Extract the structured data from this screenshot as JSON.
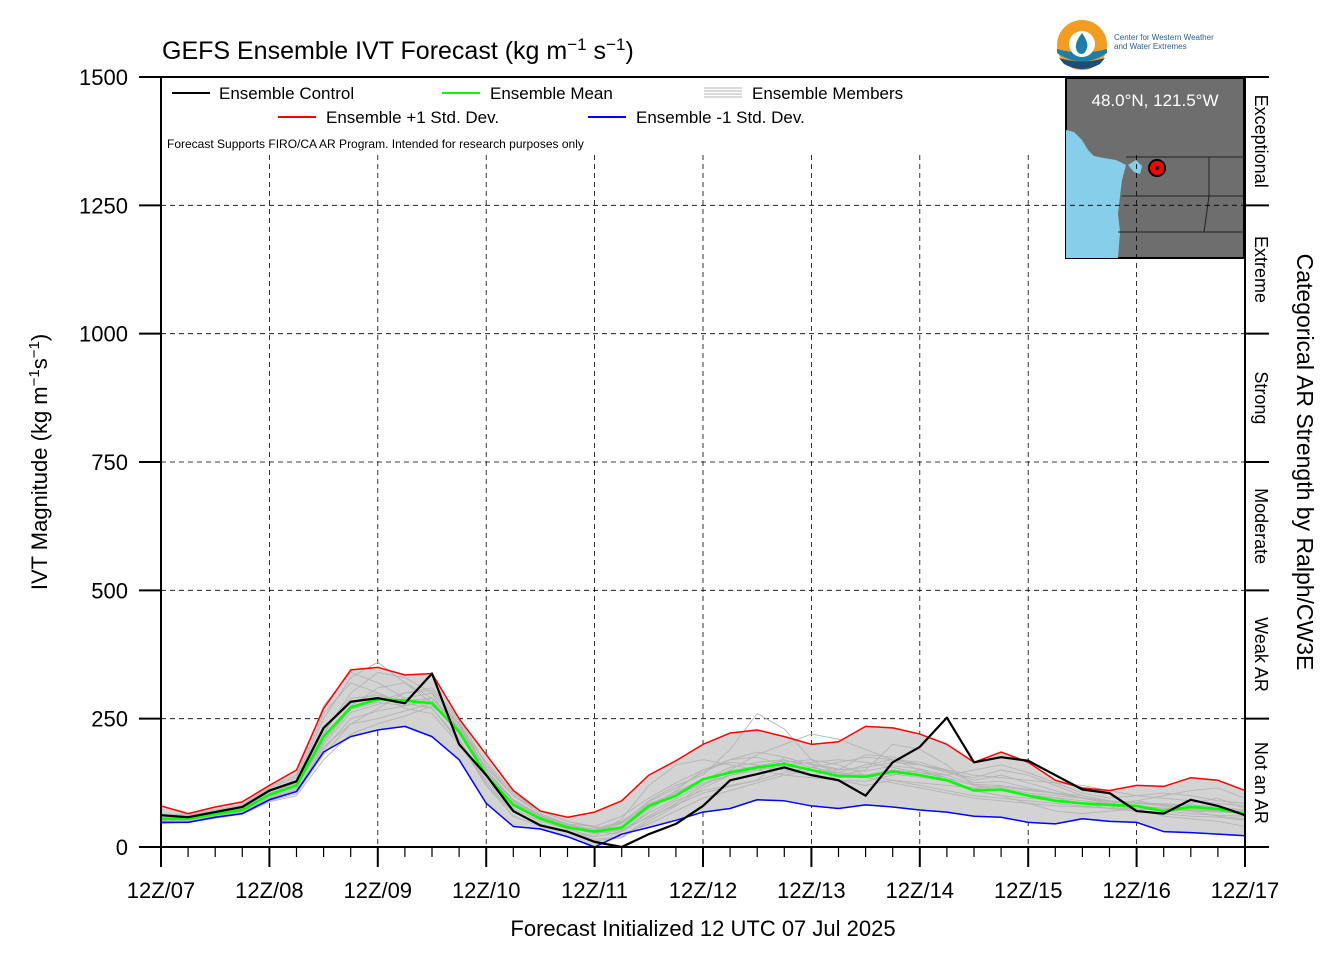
{
  "chart_data": {
    "type": "line",
    "title": "GEFS Ensemble IVT Forecast (kg m$^{-1}$ s$^{-1}$)",
    "title_parts": {
      "main": "GEFS Ensemble IVT Forecast (kg m",
      "exp1": "−1",
      "mid": " s",
      "exp2": "−1",
      "end": ")"
    },
    "ylabel_parts": {
      "main": "IVT Magnitude (kg m",
      "exp1": "−1",
      "mid": "s",
      "exp2": "−1",
      "end": ")"
    },
    "xlabel": "Forecast Initialized 12 UTC 07 Jul 2025",
    "right_axis_label": "Categorical AR Strength by Ralph/CW3E",
    "note": "Forecast Supports FIRO/CA AR Program. Intended for research purposes only",
    "location_label": "48.0°N, 121.5°W",
    "logo_text": [
      "Center for Western Weather",
      "and Water Extremes"
    ],
    "xlim": [
      0,
      240
    ],
    "ylim": [
      0,
      1500
    ],
    "x_unit": "forecast hour",
    "x_ticks": [
      {
        "x": 0,
        "label": "12Z/07"
      },
      {
        "x": 24,
        "label": "12Z/08"
      },
      {
        "x": 48,
        "label": "12Z/09"
      },
      {
        "x": 72,
        "label": "12Z/10"
      },
      {
        "x": 96,
        "label": "12Z/11"
      },
      {
        "x": 120,
        "label": "12Z/12"
      },
      {
        "x": 144,
        "label": "12Z/13"
      },
      {
        "x": 168,
        "label": "12Z/14"
      },
      {
        "x": 192,
        "label": "12Z/15"
      },
      {
        "x": 216,
        "label": "12Z/16"
      },
      {
        "x": 240,
        "label": "12Z/17"
      }
    ],
    "y_ticks": [
      0,
      250,
      500,
      750,
      1000,
      1250,
      1500
    ],
    "categories": [
      {
        "label": "Not an AR",
        "range": [
          0,
          250
        ]
      },
      {
        "label": "Weak AR",
        "range": [
          250,
          500
        ]
      },
      {
        "label": "Moderate",
        "range": [
          500,
          750
        ]
      },
      {
        "label": "Strong",
        "range": [
          750,
          1000
        ]
      },
      {
        "label": "Extreme",
        "range": [
          1000,
          1250
        ]
      },
      {
        "label": "Exceptional",
        "range": [
          1250,
          1500
        ]
      }
    ],
    "grid": true,
    "legend_position": "top-left",
    "x": [
      0,
      6,
      12,
      18,
      24,
      30,
      36,
      42,
      48,
      54,
      60,
      66,
      72,
      78,
      84,
      90,
      96,
      102,
      108,
      114,
      120,
      126,
      132,
      138,
      144,
      150,
      156,
      162,
      168,
      174,
      180,
      186,
      192,
      198,
      204,
      210,
      216,
      222,
      228,
      234,
      240
    ],
    "series": [
      {
        "name": "Ensemble Control",
        "color": "#000000",
        "values": [
          62,
          58,
          68,
          78,
          110,
          128,
          232,
          283,
          290,
          280,
          338,
          200,
          140,
          70,
          42,
          30,
          10,
          0,
          25,
          45,
          80,
          130,
          142,
          155,
          140,
          130,
          100,
          165,
          195,
          252,
          165,
          175,
          168,
          140,
          112,
          105,
          70,
          65,
          92,
          80,
          62
        ]
      },
      {
        "name": "Ensemble Mean",
        "color": "#00ff00",
        "values": [
          55,
          55,
          64,
          72,
          102,
          120,
          215,
          272,
          288,
          285,
          280,
          225,
          140,
          82,
          55,
          38,
          30,
          38,
          80,
          100,
          132,
          145,
          155,
          162,
          150,
          138,
          137,
          147,
          140,
          130,
          110,
          112,
          100,
          90,
          85,
          82,
          80,
          70,
          78,
          74,
          65
        ]
      },
      {
        "name": "Ensemble +1 Std. Dev.",
        "color": "#ff0000",
        "values": [
          80,
          65,
          78,
          88,
          120,
          150,
          270,
          345,
          350,
          335,
          338,
          250,
          180,
          110,
          70,
          58,
          68,
          90,
          140,
          168,
          200,
          222,
          228,
          215,
          200,
          205,
          235,
          232,
          220,
          200,
          165,
          185,
          165,
          130,
          115,
          110,
          120,
          118,
          135,
          130,
          110
        ]
      },
      {
        "name": "Ensemble -1 Std. Dev.",
        "color": "#0000ff",
        "values": [
          48,
          48,
          58,
          65,
          92,
          108,
          185,
          215,
          228,
          235,
          215,
          170,
          85,
          40,
          35,
          20,
          0,
          25,
          38,
          52,
          68,
          75,
          92,
          90,
          80,
          75,
          82,
          78,
          72,
          68,
          60,
          58,
          48,
          45,
          55,
          50,
          48,
          30,
          28,
          25,
          22
        ]
      }
    ],
    "ensemble_members_color": "#b4b4b4",
    "shading_color": "#d3d3d3",
    "ensemble_members": [
      {
        "name": "m01",
        "values": [
          50,
          52,
          60,
          70,
          96,
          112,
          220,
          300,
          340,
          330,
          300,
          210,
          120,
          60,
          40,
          30,
          20,
          55,
          120,
          160,
          170,
          160,
          150,
          140,
          135,
          130,
          128,
          140,
          150,
          135,
          110,
          100,
          85,
          70,
          65,
          70,
          75,
          60,
          55,
          50,
          40
        ]
      },
      {
        "name": "m02",
        "values": [
          58,
          60,
          70,
          78,
          112,
          130,
          250,
          330,
          360,
          320,
          290,
          230,
          150,
          90,
          60,
          40,
          30,
          45,
          90,
          120,
          140,
          190,
          260,
          230,
          170,
          140,
          150,
          200,
          190,
          160,
          120,
          110,
          100,
          95,
          85,
          75,
          90,
          80,
          70,
          60,
          55
        ]
      },
      {
        "name": "m03",
        "values": [
          45,
          50,
          58,
          66,
          90,
          104,
          180,
          240,
          270,
          300,
          310,
          250,
          160,
          100,
          70,
          50,
          40,
          30,
          60,
          90,
          110,
          120,
          130,
          175,
          160,
          130,
          120,
          130,
          125,
          120,
          115,
          118,
          110,
          105,
          100,
          90,
          80,
          70,
          85,
          95,
          75
        ]
      },
      {
        "name": "m04",
        "values": [
          60,
          58,
          66,
          75,
          105,
          124,
          230,
          280,
          300,
          270,
          260,
          200,
          130,
          75,
          50,
          35,
          20,
          30,
          70,
          110,
          150,
          170,
          175,
          160,
          150,
          145,
          160,
          170,
          165,
          150,
          130,
          140,
          125,
          110,
          95,
          85,
          90,
          100,
          110,
          115,
          95
        ]
      },
      {
        "name": "m05",
        "values": [
          52,
          54,
          62,
          70,
          100,
          118,
          200,
          262,
          278,
          290,
          300,
          240,
          140,
          80,
          55,
          40,
          35,
          50,
          85,
          100,
          125,
          140,
          150,
          165,
          170,
          160,
          140,
          130,
          120,
          110,
          100,
          95,
          90,
          85,
          80,
          75,
          70,
          65,
          60,
          58,
          52
        ]
      },
      {
        "name": "m06",
        "values": [
          55,
          57,
          65,
          73,
          104,
          122,
          215,
          275,
          310,
          320,
          280,
          220,
          140,
          85,
          60,
          45,
          40,
          60,
          95,
          125,
          150,
          165,
          160,
          150,
          140,
          150,
          180,
          175,
          160,
          145,
          135,
          150,
          140,
          120,
          100,
          90,
          85,
          80,
          75,
          70,
          65
        ]
      },
      {
        "name": "m07",
        "values": [
          48,
          50,
          60,
          68,
          95,
          110,
          195,
          240,
          250,
          265,
          280,
          230,
          155,
          100,
          65,
          45,
          30,
          25,
          45,
          70,
          95,
          110,
          125,
          140,
          150,
          145,
          135,
          125,
          115,
          105,
          95,
          90,
          85,
          80,
          78,
          76,
          74,
          72,
          70,
          68,
          66
        ]
      },
      {
        "name": "m08",
        "values": [
          62,
          62,
          70,
          80,
          115,
          135,
          260,
          320,
          300,
          280,
          270,
          210,
          125,
          70,
          45,
          30,
          15,
          20,
          55,
          85,
          120,
          150,
          180,
          200,
          220,
          210,
          190,
          170,
          160,
          150,
          140,
          135,
          130,
          125,
          120,
          110,
          100,
          95,
          90,
          85,
          80
        ]
      },
      {
        "name": "m09",
        "values": [
          50,
          52,
          60,
          68,
          98,
          115,
          205,
          268,
          282,
          275,
          285,
          225,
          145,
          90,
          60,
          40,
          25,
          35,
          75,
          105,
          130,
          155,
          165,
          170,
          155,
          145,
          140,
          150,
          145,
          135,
          120,
          115,
          105,
          100,
          95,
          85,
          80,
          75,
          72,
          70,
          68
        ]
      },
      {
        "name": "m10",
        "values": [
          56,
          56,
          64,
          74,
          108,
          125,
          225,
          290,
          295,
          285,
          290,
          235,
          150,
          88,
          58,
          42,
          32,
          48,
          88,
          115,
          145,
          170,
          185,
          175,
          160,
          150,
          155,
          165,
          160,
          148,
          125,
          128,
          115,
          105,
          95,
          88,
          86,
          84,
          82,
          78,
          72
        ]
      },
      {
        "name": "m11",
        "values": [
          46,
          48,
          56,
          64,
          88,
          100,
          170,
          220,
          240,
          255,
          275,
          235,
          165,
          105,
          70,
          50,
          38,
          34,
          58,
          82,
          105,
          118,
          130,
          145,
          155,
          165,
          175,
          170,
          150,
          130,
          110,
          100,
          95,
          90,
          85,
          80,
          75,
          70,
          65,
          62,
          60
        ]
      },
      {
        "name": "m12",
        "values": [
          64,
          64,
          72,
          82,
          118,
          140,
          275,
          340,
          320,
          290,
          270,
          205,
          120,
          68,
          42,
          28,
          12,
          18,
          50,
          80,
          115,
          140,
          155,
          160,
          165,
          170,
          165,
          155,
          145,
          140,
          150,
          160,
          145,
          125,
          105,
          95,
          100,
          105,
          100,
          90,
          85
        ]
      },
      {
        "name": "m13",
        "values": [
          53,
          55,
          63,
          71,
          101,
          119,
          208,
          270,
          285,
          300,
          305,
          245,
          150,
          92,
          62,
          44,
          34,
          46,
          82,
          108,
          132,
          148,
          158,
          168,
          162,
          152,
          148,
          158,
          152,
          140,
          122,
          120,
          112,
          104,
          96,
          90,
          86,
          82,
          80,
          76,
          70
        ]
      },
      {
        "name": "m14",
        "values": [
          49,
          51,
          59,
          67,
          94,
          109,
          190,
          250,
          265,
          275,
          290,
          240,
          150,
          92,
          60,
          42,
          28,
          32,
          66,
          94,
          122,
          140,
          150,
          158,
          150,
          142,
          138,
          142,
          136,
          128,
          114,
          110,
          102,
          96,
          90,
          84,
          80,
          76,
          74,
          72,
          68
        ]
      }
    ]
  },
  "legend": [
    {
      "name": "Ensemble Control",
      "color": "#000000"
    },
    {
      "name": "Ensemble Mean",
      "color": "#00ff00"
    },
    {
      "name": "Ensemble Members",
      "color": "#b4b4b4"
    },
    {
      "name": "Ensemble +1 Std. Dev.",
      "color": "#ff0000"
    },
    {
      "name": "Ensemble -1 Std. Dev.",
      "color": "#0000ff"
    }
  ]
}
